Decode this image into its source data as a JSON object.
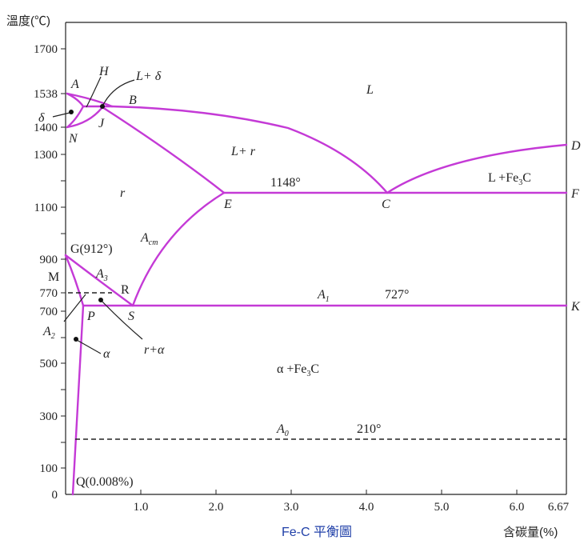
{
  "axes": {
    "y_title": "溫度(℃)",
    "x_title": "含碳量(%)",
    "y_ticks": [
      "1700",
      "1538",
      "1400",
      "1300",
      "1100",
      "900",
      "770",
      "700",
      "500",
      "300",
      "100",
      "0"
    ],
    "x_ticks": [
      "1.0",
      "2.0",
      "3.0",
      "4.0",
      "5.0",
      "6.0",
      "6.67"
    ]
  },
  "caption": "Fe-C 平衡圖",
  "points": {
    "A": "A",
    "B": "B",
    "H": "H",
    "J": "J",
    "N": "N",
    "C": "C",
    "D": "D",
    "E": "E",
    "F": "F",
    "K": "K",
    "S": "S",
    "P": "P",
    "R": "R",
    "M": "M",
    "G": "G(912°)",
    "Q": "Q(0.008%)"
  },
  "regions": {
    "L": "L",
    "L_r": "L+ r",
    "r": "r",
    "L_Fe3C_main": "L +Fe",
    "L_Fe3C_sub": "3",
    "L_Fe3C_end": "C",
    "a_Fe3C_main": "α +Fe",
    "a_Fe3C_sub": "3",
    "a_Fe3C_end": "C"
  },
  "annotations": {
    "L_delta": "L+ δ",
    "delta": "δ",
    "r_alpha": "r+α",
    "alpha": "α",
    "A_cm_main": "A",
    "A_cm_sub": "cm",
    "A3_main": "A",
    "A3_sub": "3",
    "A2_main": "A",
    "A2_sub": "2",
    "A1_main": "A",
    "A1_sub": "1",
    "A0_main": "A",
    "A0_sub": "0",
    "t1148": "1148°",
    "t727": "727°",
    "t210": "210°"
  },
  "colors": {
    "phase_line": "#c43ad6",
    "caption": "#1f3fa8"
  }
}
